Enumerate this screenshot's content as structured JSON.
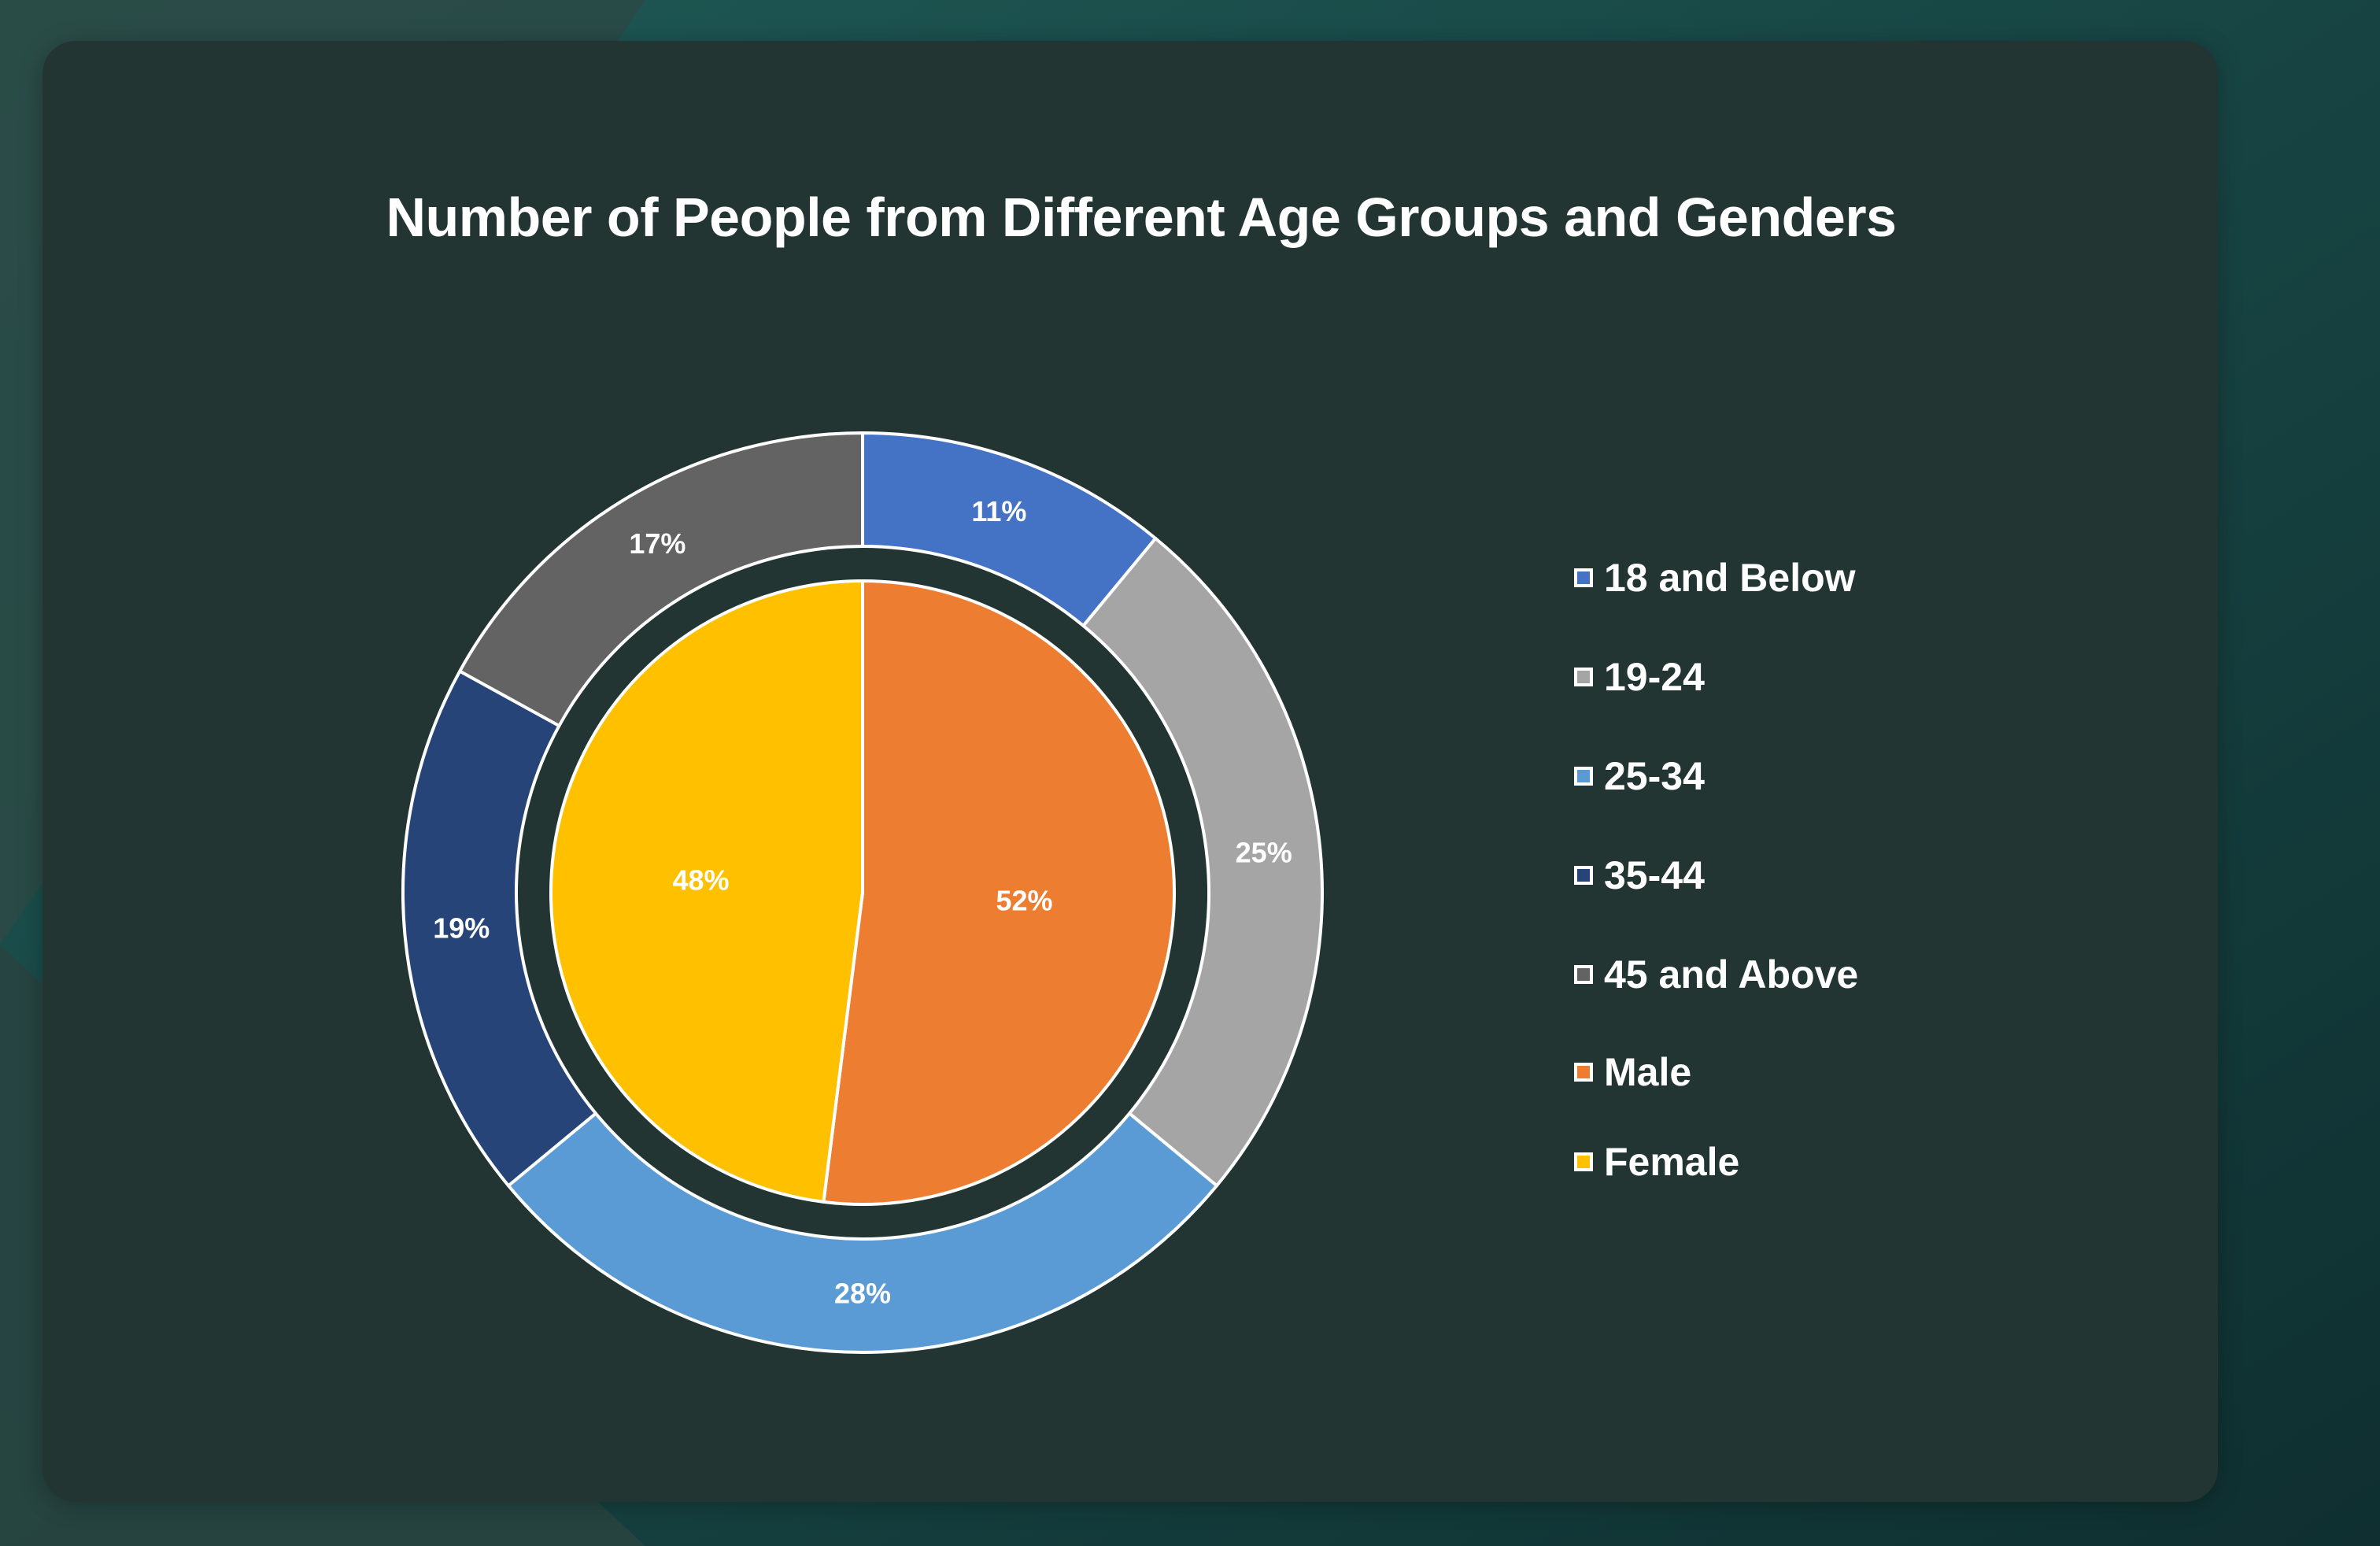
{
  "chart_data": {
    "type": "pie",
    "title": "Number of People from Different Age Groups and Genders",
    "rings": [
      {
        "ring": "outer",
        "categories": [
          "18 and Below",
          "19-24",
          "25-34",
          "35-44",
          "45 and Above"
        ],
        "values": [
          11,
          25,
          28,
          19,
          17
        ],
        "labels": [
          "11%",
          "25%",
          "28%",
          "19%",
          "17%"
        ],
        "colors": [
          "#4472c4",
          "#a5a5a5",
          "#5b9bd5",
          "#264478",
          "#636363"
        ]
      },
      {
        "ring": "inner",
        "categories": [
          "Male",
          "Female"
        ],
        "values": [
          52,
          48
        ],
        "labels": [
          "52%",
          "48%"
        ],
        "colors": [
          "#ed7d31",
          "#ffc000"
        ]
      }
    ],
    "legend": {
      "position": "right",
      "entries": [
        "18 and Below",
        "19-24",
        "25-34",
        "35-44",
        "45 and Above",
        "Male",
        "Female"
      ],
      "colors": [
        "#4472c4",
        "#a5a5a5",
        "#5b9bd5",
        "#264478",
        "#636363",
        "#ed7d31",
        "#ffc000"
      ]
    }
  }
}
